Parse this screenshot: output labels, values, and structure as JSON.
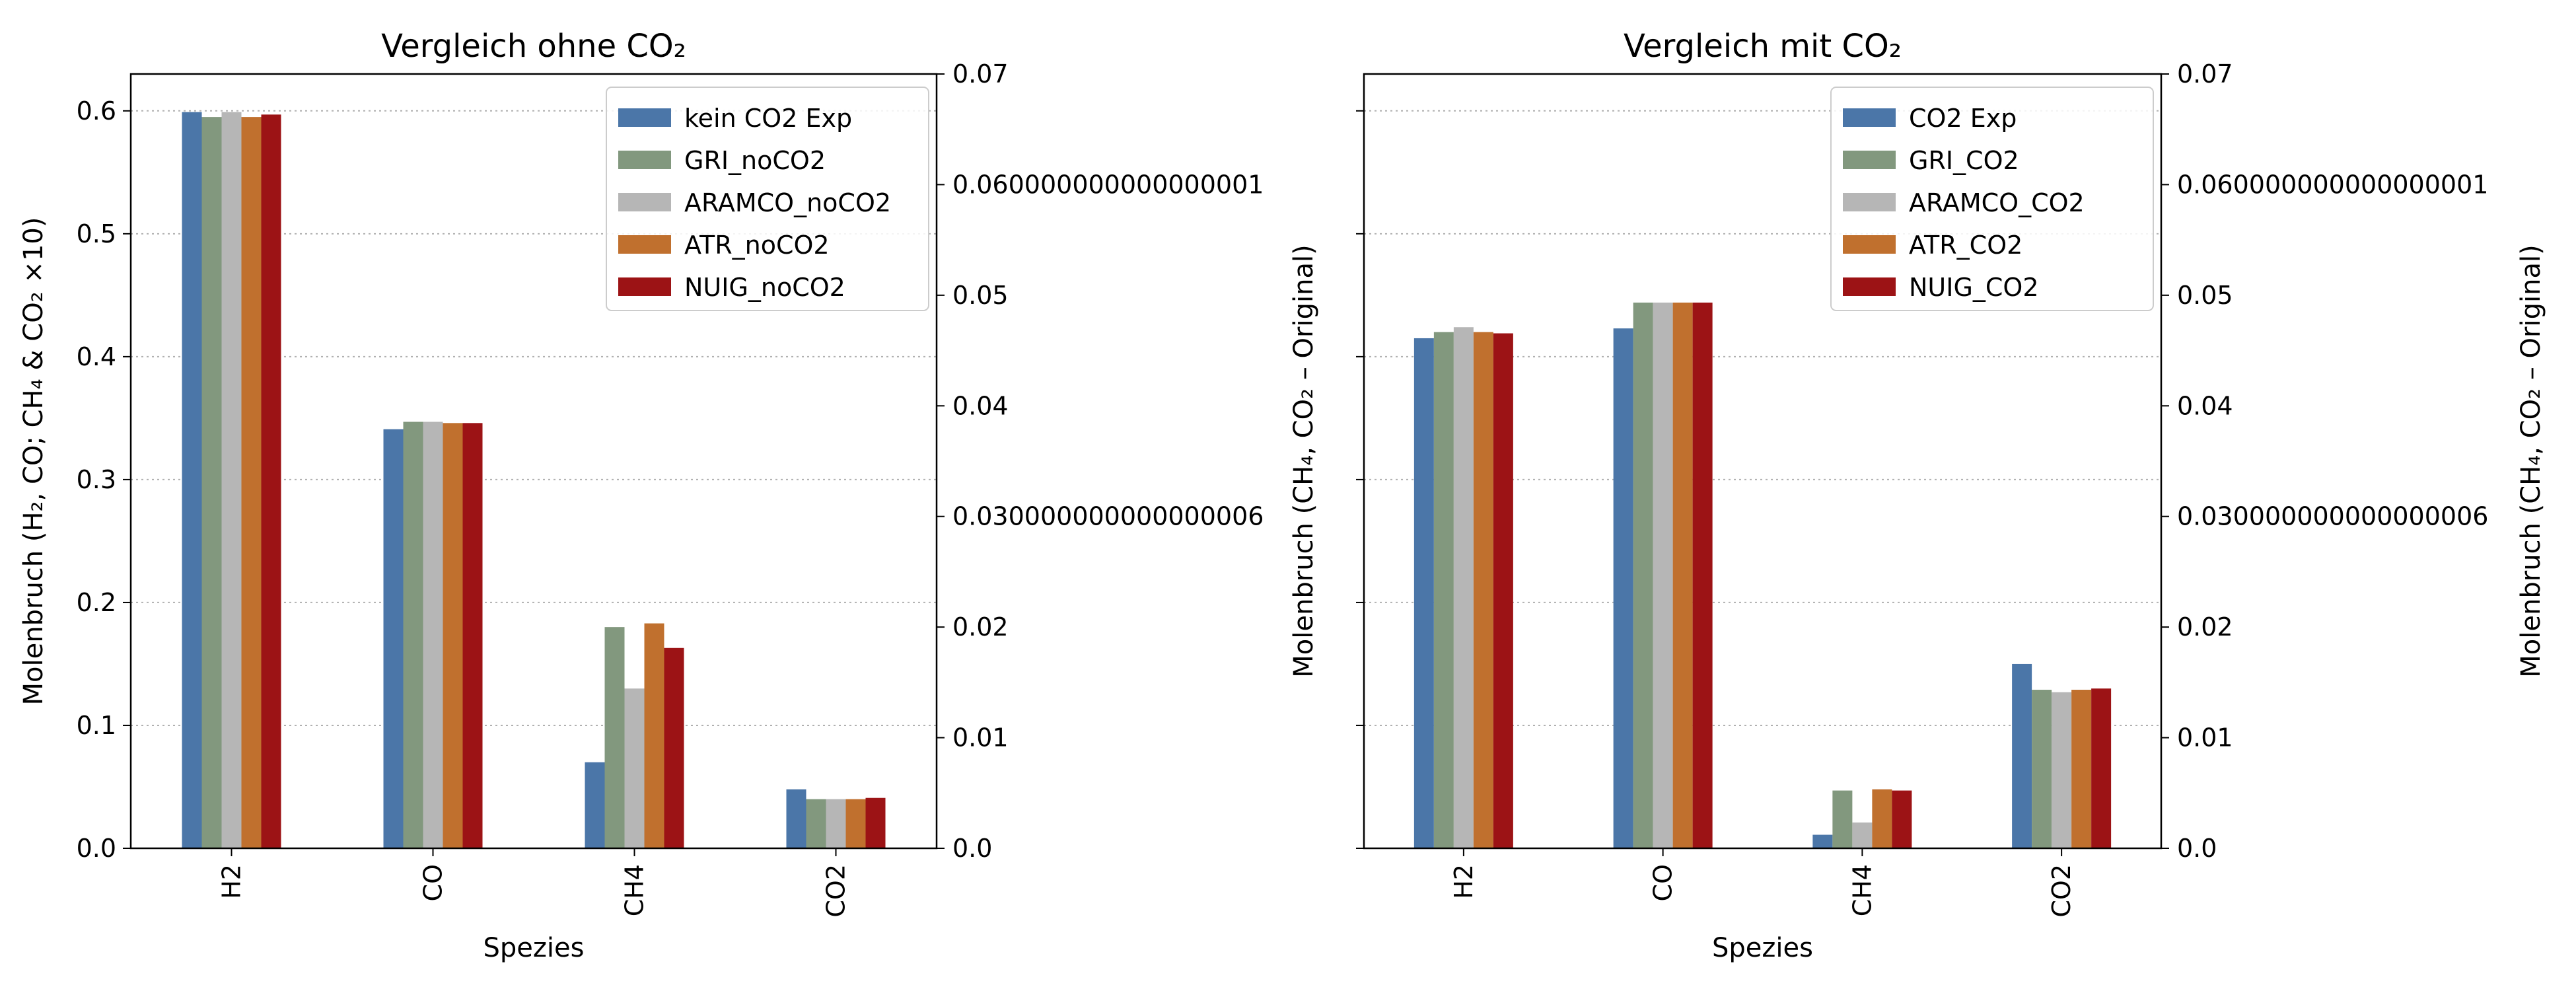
{
  "chart_data": [
    {
      "type": "bar",
      "title": "Vergleich ohne CO₂",
      "xlabel": "Spezies",
      "ylabel": "Molenbruch (H₂, CO; CH₄ & CO₂ ×10)",
      "ylabel_right": "",
      "categories": [
        "H2",
        "CO",
        "CH4",
        "CO2"
      ],
      "ylim": [
        0,
        0.63
      ],
      "yticks": [
        "0.0",
        "0.1",
        "0.2",
        "0.3",
        "0.4",
        "0.5",
        "0.6"
      ],
      "ylim_right": [
        0,
        0.07
      ],
      "yticks_right": [
        "0.0",
        "0.01",
        "0.02",
        "0.030000000000000006",
        "0.04",
        "0.05",
        "0.060000000000000001",
        "0.07"
      ],
      "grid": true,
      "legend_position": "top-right",
      "series": [
        {
          "name": "kein CO2 Exp",
          "color": "#4b76a8",
          "values": [
            0.599,
            0.341,
            0.07,
            0.048
          ]
        },
        {
          "name": "GRI_noCO2",
          "color": "#82987e",
          "values": [
            0.595,
            0.347,
            0.18,
            0.04
          ]
        },
        {
          "name": "ARAMCO_noCO2",
          "color": "#b6b6b6",
          "values": [
            0.599,
            0.347,
            0.13,
            0.04
          ]
        },
        {
          "name": "ATR_noCO2",
          "color": "#c0702e",
          "values": [
            0.595,
            0.346,
            0.183,
            0.04
          ]
        },
        {
          "name": "NUIG_noCO2",
          "color": "#9c1315",
          "values": [
            0.597,
            0.346,
            0.163,
            0.041
          ]
        }
      ]
    },
    {
      "type": "bar",
      "title": "Vergleich mit CO₂",
      "xlabel": "Spezies",
      "ylabel": "Molenbruch (CH₄, CO₂ – Original)",
      "ylabel_right": "Molenbruch (CH₄, CO₂ – Original)",
      "categories": [
        "H2",
        "CO",
        "CH4",
        "CO2"
      ],
      "ylim": [
        0,
        0.63
      ],
      "yticks": [],
      "ylim_right": [
        0,
        0.07
      ],
      "yticks_right": [
        "0.0",
        "0.01",
        "0.02",
        "0.030000000000000006",
        "0.04",
        "0.05",
        "0.060000000000000001",
        "0.07"
      ],
      "grid": true,
      "legend_position": "top-right",
      "series": [
        {
          "name": "CO2 Exp",
          "color": "#4b76a8",
          "values": [
            0.415,
            0.423,
            0.011,
            0.15
          ]
        },
        {
          "name": "GRI_CO2",
          "color": "#82987e",
          "values": [
            0.42,
            0.444,
            0.047,
            0.129
          ]
        },
        {
          "name": "ARAMCO_CO2",
          "color": "#b6b6b6",
          "values": [
            0.424,
            0.444,
            0.021,
            0.127
          ]
        },
        {
          "name": "ATR_CO2",
          "color": "#c0702e",
          "values": [
            0.42,
            0.444,
            0.048,
            0.129
          ]
        },
        {
          "name": "NUIG_CO2",
          "color": "#9c1315",
          "values": [
            0.419,
            0.444,
            0.047,
            0.13
          ]
        }
      ]
    }
  ]
}
